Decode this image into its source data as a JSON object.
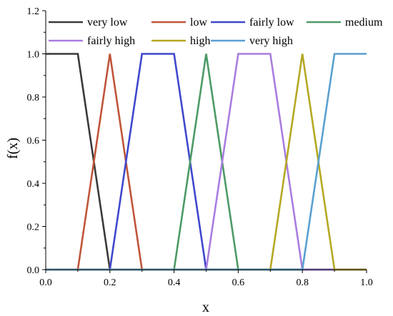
{
  "chart_data": {
    "type": "line",
    "title": "",
    "xlabel": "x",
    "ylabel": "f(x)",
    "xlim": [
      0,
      1
    ],
    "ylim": [
      0,
      1.2
    ],
    "xticks": [
      0,
      0.2,
      0.4,
      0.6,
      0.8,
      1.0
    ],
    "xtick_labels": [
      "0.0",
      "0.2",
      "0.4",
      "0.6",
      "0.8",
      "1.0"
    ],
    "yticks": [
      0,
      0.2,
      0.4,
      0.6,
      0.8,
      1.0,
      1.2
    ],
    "ytick_labels": [
      "0.0",
      "0.2",
      "0.4",
      "0.6",
      "0.8",
      "1.0",
      "1.2"
    ],
    "grid": false,
    "legend_position": "top",
    "series": [
      {
        "name": "very low",
        "color": "#3a3a3a",
        "x": [
          0,
          0.1,
          0.2,
          1.0
        ],
        "y": [
          1,
          1,
          0,
          0
        ]
      },
      {
        "name": "low",
        "color": "#c0553a",
        "x": [
          0,
          0.1,
          0.2,
          0.3,
          1.0
        ],
        "y": [
          0,
          0,
          1,
          0,
          0
        ]
      },
      {
        "name": "fairly low",
        "color": "#3f48cc",
        "x": [
          0,
          0.2,
          0.3,
          0.4,
          0.5,
          1.0
        ],
        "y": [
          0,
          0,
          1,
          1,
          0,
          0
        ]
      },
      {
        "name": "medium",
        "color": "#4c9a66",
        "x": [
          0,
          0.4,
          0.5,
          0.6,
          1.0
        ],
        "y": [
          0,
          0,
          1,
          0,
          0
        ]
      },
      {
        "name": "fairly high",
        "color": "#a97de0",
        "x": [
          0,
          0.5,
          0.6,
          0.7,
          0.8,
          1.0
        ],
        "y": [
          0,
          0,
          1,
          1,
          0,
          0
        ]
      },
      {
        "name": "high",
        "color": "#b5a823",
        "x": [
          0,
          0.7,
          0.8,
          0.9,
          1.0
        ],
        "y": [
          0,
          0,
          1,
          0,
          0
        ]
      },
      {
        "name": "very high",
        "color": "#5aa0d0",
        "x": [
          0,
          0.8,
          0.9,
          1.0
        ],
        "y": [
          0,
          0,
          1,
          1
        ]
      }
    ]
  }
}
